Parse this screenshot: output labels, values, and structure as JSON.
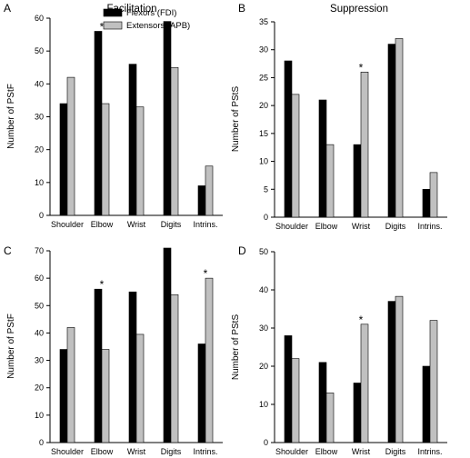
{
  "column_titles": [
    "Facilitation",
    "Suppression"
  ],
  "colors": {
    "flexors": "#000000",
    "extensors": "#c0c0c0",
    "bar_stroke": "#000000"
  },
  "chart_data": [
    {
      "panel": "A",
      "type": "bar",
      "categories": [
        "Shoulder",
        "Elbow",
        "Wrist",
        "Digits",
        "Intrins."
      ],
      "series": [
        {
          "name": "Flexors (FDI)",
          "values": [
            34,
            56,
            46,
            59,
            9
          ]
        },
        {
          "name": "Extensors (APB)",
          "values": [
            42,
            34,
            33,
            45,
            15
          ]
        }
      ],
      "ylabel": "Number of PStF",
      "yticks": [
        0,
        10,
        20,
        30,
        40,
        50,
        60
      ],
      "ylim": [
        0,
        60
      ],
      "legend": "top-left",
      "grid": false,
      "annotations": [
        {
          "category": "Elbow",
          "text": "*"
        }
      ]
    },
    {
      "panel": "B",
      "type": "bar",
      "categories": [
        "Shoulder",
        "Elbow",
        "Wrist",
        "Digits",
        "Intrins."
      ],
      "series": [
        {
          "name": "Flexors (FDI)",
          "values": [
            28,
            21,
            13,
            31,
            5
          ]
        },
        {
          "name": "Extensors (APB)",
          "values": [
            22,
            13,
            26,
            32,
            8
          ]
        }
      ],
      "ylabel": "Number of PStS",
      "yticks": [
        0,
        5,
        10,
        15,
        20,
        25,
        30,
        35
      ],
      "ylim": [
        0,
        35
      ],
      "grid": false,
      "annotations": [
        {
          "category": "Wrist",
          "text": "*"
        }
      ]
    },
    {
      "panel": "C",
      "type": "bar",
      "categories": [
        "Shoulder",
        "Elbow",
        "Wrist",
        "Digits",
        "Intrins."
      ],
      "series": [
        {
          "name": "Flexors (FDI)",
          "values": [
            34,
            56,
            55,
            71,
            36
          ]
        },
        {
          "name": "Extensors (APB)",
          "values": [
            42,
            34,
            39.5,
            54,
            60
          ]
        }
      ],
      "ylabel": "Number of PStF",
      "yticks": [
        0,
        10,
        20,
        30,
        40,
        50,
        60,
        70
      ],
      "ylim": [
        0,
        70
      ],
      "grid": false,
      "annotations": [
        {
          "category": "Elbow",
          "text": "*"
        },
        {
          "category": "Intrins.",
          "text": "*"
        }
      ]
    },
    {
      "panel": "D",
      "type": "bar",
      "categories": [
        "Shoulder",
        "Elbow",
        "Wrist",
        "Digits",
        "Intrins."
      ],
      "series": [
        {
          "name": "Flexors (FDI)",
          "values": [
            28,
            21,
            15.6,
            37,
            20
          ]
        },
        {
          "name": "Extensors (APB)",
          "values": [
            22,
            13,
            31,
            38.3,
            32
          ]
        }
      ],
      "ylabel": "Number of PStS",
      "yticks": [
        0,
        10,
        20,
        30,
        40,
        50
      ],
      "ylim": [
        0,
        50
      ],
      "grid": false,
      "annotations": [
        {
          "category": "Wrist",
          "text": "*"
        }
      ]
    }
  ]
}
